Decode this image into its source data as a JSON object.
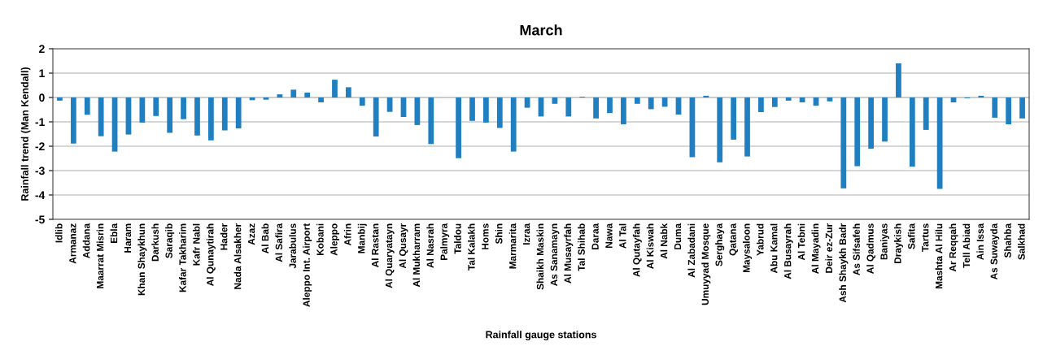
{
  "chart_data": {
    "type": "bar",
    "title": "March",
    "xlabel": "Rainfall gauge stations",
    "ylabel": "Rainfall trend (Man Kendall)",
    "categories": [
      "Idlib",
      "Armanaz",
      "Addana",
      "Maarrat Misrin",
      "Ebla",
      "Haram",
      "Khan Shaykhun",
      "Darkush",
      "Saraqib",
      "Kafar Takharim",
      "Kafr Nabl",
      "Al Qunaytirah",
      "Hader",
      "Nada Alsakher",
      "Azaz",
      "Al Bab",
      "Al Safira",
      "Jarabulus",
      "Aleppo Int. Airport",
      "Kobani",
      "Aleppo",
      "Afrin",
      "Manbij",
      "Al Rastan",
      "Al Quaryatayn",
      "Al Qusayr",
      "Al Mukharram",
      "Al Nasrah",
      "Palmyra",
      "Taldou",
      "Tal Kalakh",
      "Homs",
      "Shin",
      "Marmarita",
      "Izraa",
      "Shaikh Maskin",
      "As Sanamayn",
      "Al Musayrfah",
      "Tal Shihab",
      "Daraa",
      "Nawa",
      "Al Tal",
      "Al Qutayfah",
      "Al Kiswah",
      "Al Nabk",
      "Duma",
      "Al Zabadani",
      "Umuyyad Mosque",
      "Serghaya",
      "Qatana",
      "Maysaloon",
      "Yabrud",
      "Abu Kamal",
      "Al Busayrah",
      "Al Tebni",
      "Al Mayadin",
      "Deir ez-Zur",
      "Ash Shaykh Badr",
      "As Sifsafeh",
      "Al Qadmus",
      "Baniyas",
      "Draykish",
      "Safita",
      "Tartus",
      "Mashta Al Hilu",
      "Ar Reqqah",
      "Tell Abiad",
      "Ain Issa",
      "As Suwayda",
      "Shahba",
      "Salkhad"
    ],
    "values": [
      -0.13,
      -1.89,
      -0.71,
      -1.59,
      -2.22,
      -1.52,
      -1.03,
      -0.76,
      -1.45,
      -0.89,
      -1.56,
      -1.76,
      -1.35,
      -1.27,
      -0.11,
      -0.09,
      0.13,
      0.32,
      0.2,
      -0.2,
      0.73,
      0.42,
      -0.34,
      -1.6,
      -0.59,
      -0.8,
      -1.13,
      -1.91,
      0,
      -2.49,
      -0.96,
      -1.03,
      -1.25,
      -2.22,
      -0.42,
      -0.78,
      -0.26,
      -0.78,
      0.03,
      -0.86,
      -0.64,
      -1.1,
      -0.26,
      -0.48,
      -0.38,
      -0.7,
      -2.45,
      0.07,
      -2.66,
      -1.73,
      -2.42,
      -0.6,
      -0.39,
      -0.13,
      -0.2,
      -0.34,
      -0.16,
      -3.73,
      -2.82,
      -2.1,
      -1.81,
      1.4,
      -2.84,
      -1.33,
      -3.75,
      -0.2,
      -0.03,
      0.07,
      -0.83,
      -1.1,
      -0.86
    ],
    "color": "#1f7fc1",
    "ylim": [
      -5,
      2
    ],
    "yticks": [
      -5,
      -4,
      -3,
      -2,
      -1,
      0,
      1,
      2
    ],
    "grid": "y"
  }
}
